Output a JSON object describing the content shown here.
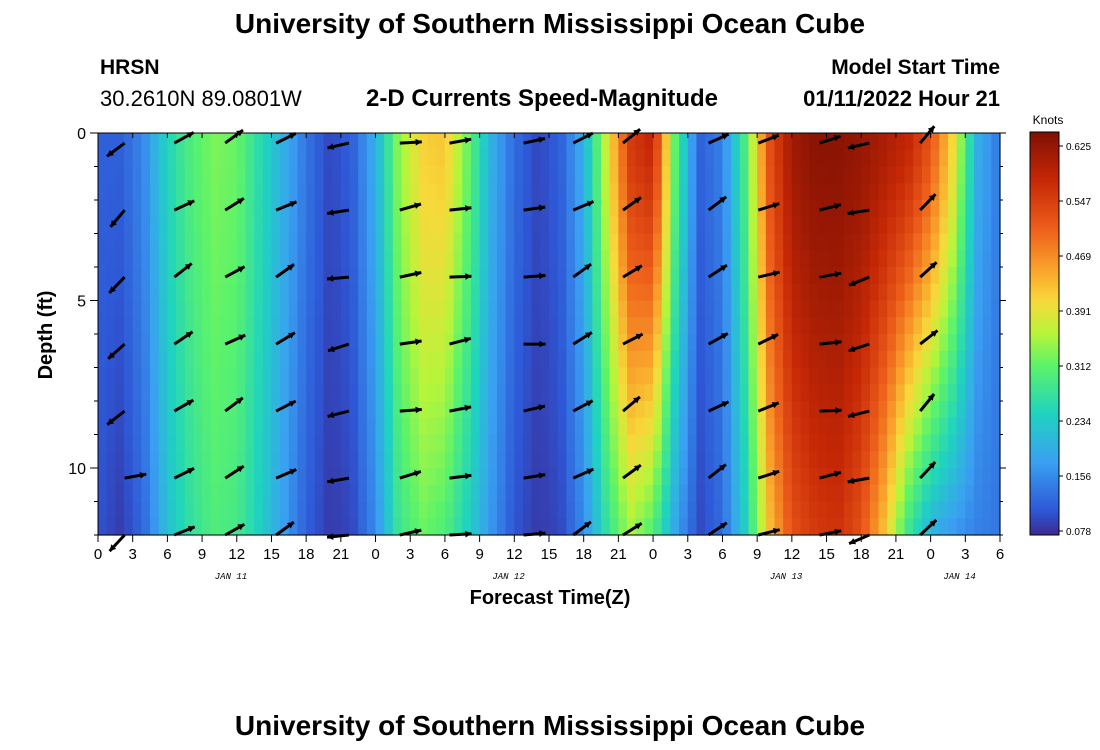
{
  "header": {
    "title": "University of Southern Mississippi Ocean Cube",
    "station": "HRSN",
    "coords": "30.2610N  89.0801W",
    "subtitle": "2-D Currents Speed-Magnitude",
    "model_label": "Model Start Time",
    "model_time": "01/11/2022 Hour 21"
  },
  "footer": {
    "title": "University of Southern Mississippi Ocean Cube"
  },
  "chart_data": {
    "type": "heatmap",
    "xlabel": "Forecast Time(Z)",
    "ylabel": "Depth (ft)",
    "x_range_hours": [
      0,
      78
    ],
    "ylim": [
      0,
      12
    ],
    "x_tick_labels": [
      "0",
      "3",
      "6",
      "9",
      "12",
      "15",
      "18",
      "21",
      "0",
      "3",
      "6",
      "9",
      "12",
      "15",
      "18",
      "21",
      "0",
      "3",
      "6",
      "9",
      "12",
      "15",
      "18",
      "21",
      "0",
      "3",
      "6"
    ],
    "day_labels": [
      {
        "label": "JAN 11",
        "hour": 11.5
      },
      {
        "label": "JAN 12",
        "hour": 35.5
      },
      {
        "label": "JAN 13",
        "hour": 59.5
      },
      {
        "label": "JAN 14",
        "hour": 74.5
      }
    ],
    "y_ticks": [
      0,
      5,
      10
    ],
    "colorbar": {
      "title": "Knots",
      "tick_labels": [
        "0.625",
        "0.547",
        "0.469",
        "0.391",
        "0.312",
        "0.234",
        "0.156",
        "0.078"
      ],
      "min": 0.078,
      "max": 0.64
    },
    "speed_profile": {
      "hours": [
        0,
        2,
        4,
        6,
        8,
        10,
        12,
        14,
        16,
        18,
        20,
        22,
        24,
        26,
        28,
        30,
        32,
        34,
        36,
        38,
        40,
        42,
        44,
        46,
        48,
        50,
        52,
        54,
        56,
        58,
        60,
        62,
        64,
        66,
        68,
        70,
        72,
        74,
        76,
        78
      ],
      "surface": [
        0.12,
        0.12,
        0.16,
        0.25,
        0.3,
        0.33,
        0.32,
        0.26,
        0.2,
        0.14,
        0.1,
        0.12,
        0.2,
        0.34,
        0.41,
        0.42,
        0.32,
        0.2,
        0.13,
        0.1,
        0.12,
        0.2,
        0.38,
        0.55,
        0.58,
        0.3,
        0.12,
        0.15,
        0.3,
        0.52,
        0.61,
        0.63,
        0.63,
        0.62,
        0.6,
        0.58,
        0.52,
        0.4,
        0.2,
        0.14
      ],
      "bottom": [
        0.11,
        0.09,
        0.13,
        0.22,
        0.27,
        0.3,
        0.29,
        0.24,
        0.18,
        0.12,
        0.09,
        0.1,
        0.16,
        0.28,
        0.32,
        0.3,
        0.24,
        0.17,
        0.11,
        0.09,
        0.1,
        0.16,
        0.27,
        0.35,
        0.3,
        0.18,
        0.1,
        0.13,
        0.24,
        0.42,
        0.52,
        0.55,
        0.56,
        0.52,
        0.42,
        0.28,
        0.2,
        0.17,
        0.15,
        0.14
      ]
    },
    "vectors": {
      "hours": [
        2.3,
        6.6,
        11.0,
        15.4,
        21.7,
        26.1,
        30.4,
        36.8,
        41.1,
        45.4,
        52.8,
        57.1,
        62.4,
        66.7,
        71.1
      ],
      "depths": [
        0.3,
        2.3,
        4.3,
        6.3,
        8.3,
        10.3,
        12.0
      ],
      "note": "current direction arrows in each cell (angle in degrees, 0 = east, positive = northward)"
    }
  }
}
